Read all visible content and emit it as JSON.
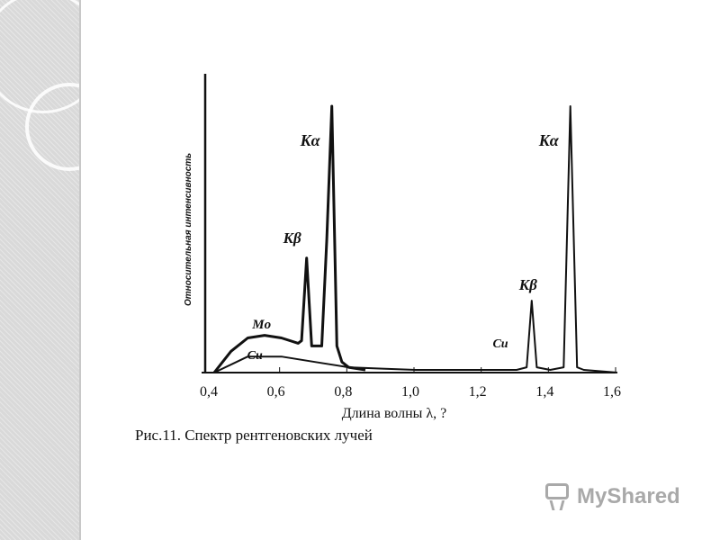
{
  "chart_data": {
    "type": "line",
    "title": "",
    "xlabel": "Длина волны λ, ?",
    "ylabel": "Относительная интенсивность",
    "xlim": [
      0.4,
      1.6
    ],
    "x_ticks": [
      "0,4",
      "0,6",
      "0,8",
      "1,0",
      "1,2",
      "1,4",
      "1,6"
    ],
    "x_tick_values": [
      0.4,
      0.6,
      0.8,
      1.0,
      1.2,
      1.4,
      1.6
    ],
    "grid": false,
    "legend": "none",
    "series": [
      {
        "name": "Mo",
        "x": [
          0.4,
          0.45,
          0.5,
          0.55,
          0.6,
          0.65,
          0.66,
          0.675,
          0.69,
          0.7,
          0.72,
          0.735,
          0.75,
          0.765,
          0.78,
          0.8,
          0.85
        ],
        "y": [
          0.0,
          0.08,
          0.13,
          0.14,
          0.13,
          0.11,
          0.12,
          0.43,
          0.1,
          0.1,
          0.1,
          0.5,
          1.0,
          0.1,
          0.04,
          0.02,
          0.01
        ]
      },
      {
        "name": "Cu",
        "x": [
          0.4,
          0.5,
          0.6,
          0.7,
          0.8,
          0.9,
          1.0,
          1.1,
          1.2,
          1.3,
          1.33,
          1.345,
          1.36,
          1.4,
          1.44,
          1.46,
          1.48,
          1.5,
          1.6
        ],
        "y": [
          0.0,
          0.06,
          0.06,
          0.04,
          0.02,
          0.015,
          0.01,
          0.01,
          0.01,
          0.01,
          0.02,
          0.27,
          0.02,
          0.01,
          0.02,
          1.0,
          0.02,
          0.01,
          0.0
        ]
      }
    ],
    "annotations": [
      {
        "text": "Kα",
        "x": 0.75,
        "series": "Mo"
      },
      {
        "text": "Kβ",
        "x": 0.675,
        "series": "Mo"
      },
      {
        "text": "Mo",
        "x": 0.6,
        "series": "Mo"
      },
      {
        "text": "Cu",
        "x": 0.58,
        "series": "Cu"
      },
      {
        "text": "Kα",
        "x": 1.46,
        "series": "Cu"
      },
      {
        "text": "Kβ",
        "x": 1.345,
        "series": "Cu"
      },
      {
        "text": "Cu",
        "x": 1.3,
        "series": "Cu"
      }
    ]
  },
  "caption": "Рис.11. Спектр рентгеновских лучей",
  "watermark": "MyShared",
  "colors": {
    "line": "#111111",
    "side_panel": "#d9d9d9",
    "watermark": "#a9a9a9"
  }
}
